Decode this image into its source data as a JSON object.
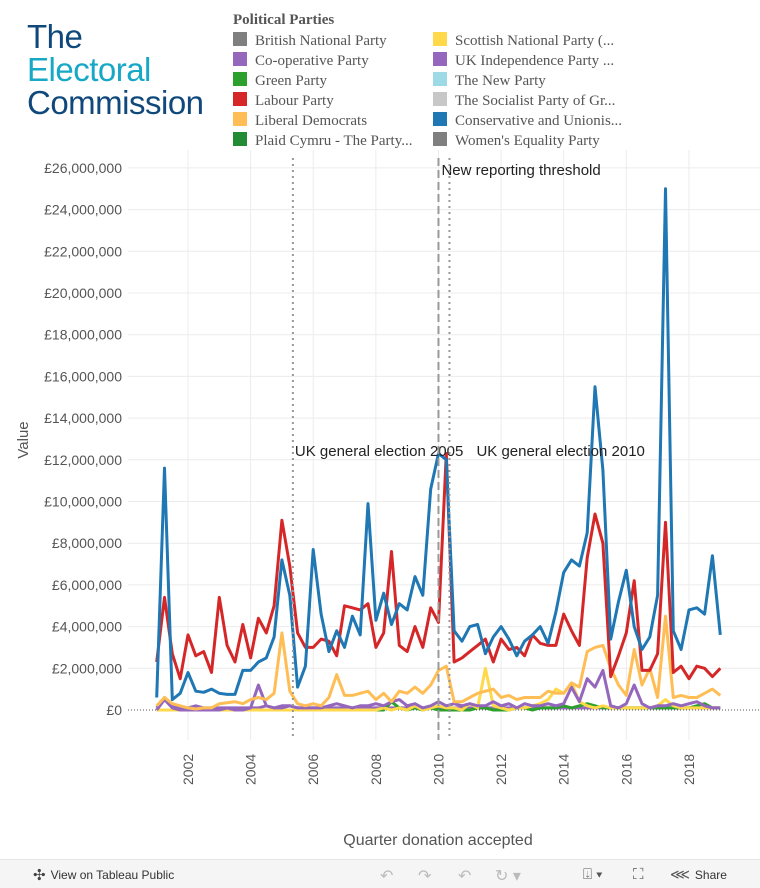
{
  "logo": {
    "line1": "The",
    "line2": "Electoral",
    "line3": "Commission",
    "color1": "#10487b",
    "color2": "#16a8c5"
  },
  "legend": {
    "title": "Political Parties",
    "items": [
      {
        "label": "British National Party",
        "color": "#7f7f7f"
      },
      {
        "label": "Co-operative Party",
        "color": "#9467bd"
      },
      {
        "label": "Green Party",
        "color": "#2ca02c"
      },
      {
        "label": "Labour Party",
        "color": "#d62728"
      },
      {
        "label": "Liberal Democrats",
        "color": "#ffbe55"
      },
      {
        "label": "Plaid Cymru - The Party...",
        "color": "#238b36"
      },
      {
        "label": "Scottish National Party (...",
        "color": "#ffd94a"
      },
      {
        "label": "UK Independence Party ...",
        "color": "#9467bd"
      },
      {
        "label": "The New Party",
        "color": "#9edae5"
      },
      {
        "label": "The Socialist Party of Gr...",
        "color": "#c7c7c7"
      },
      {
        "label": "Conservative and Unionis...",
        "color": "#1f77b4"
      },
      {
        "label": "Women's Equality Party",
        "color": "#7f7f7f"
      }
    ]
  },
  "chart_data": {
    "type": "line",
    "xlabel": "Quarter donation accepted",
    "ylabel": "Value",
    "x_start": "2001 Q1",
    "x_step": "quarter",
    "xlim": [
      2000.9,
      2019.2
    ],
    "ylim": [
      0,
      26000000
    ],
    "xticks": [
      "2002",
      "2004",
      "2006",
      "2008",
      "2010",
      "2012",
      "2014",
      "2016",
      "2018"
    ],
    "yticks": [
      "£0",
      "£2,000,000",
      "£4,000,000",
      "£6,000,000",
      "£8,000,000",
      "£10,000,000",
      "£12,000,000",
      "£14,000,000",
      "£16,000,000",
      "£18,000,000",
      "£20,000,000",
      "£22,000,000",
      "£24,000,000",
      "£26,000,000"
    ],
    "value_unit": "£ millions",
    "grid": true,
    "reference_lines": [
      {
        "label": "UK general election 2005",
        "x": 2005.35,
        "style": "dotted"
      },
      {
        "label": "New reporting threshold",
        "x": 2010.0,
        "style": "dashed"
      },
      {
        "label": "UK general election 2010",
        "x": 2010.35,
        "style": "dotted"
      }
    ],
    "series": [
      {
        "name": "Co-operative Party",
        "color": "#9467bd",
        "values": [
          0.1,
          0.6,
          0.2,
          0.1,
          0.1,
          0.2,
          0.1,
          0.1,
          0.1,
          0.1,
          0.1,
          0.1,
          0.1,
          0.1,
          0.2,
          0.1,
          0.2,
          0.2,
          0.1,
          0.1,
          0.1,
          0.1,
          0.1,
          0.1,
          0.1,
          0.1,
          0.1,
          0.1,
          0.1,
          0.1,
          0.1,
          0.1,
          0.1,
          0.1,
          0.1,
          0.1,
          0.1,
          0.1,
          0.1,
          0.1,
          0.1,
          0.1,
          0.1,
          0.1,
          0.1,
          0.1,
          0.1,
          0.1,
          0.1,
          0.1,
          0.1,
          0.1,
          0.1,
          0.1,
          0.1,
          0.1,
          0.1,
          0.1,
          0.1,
          0.1,
          0.1,
          0.1,
          0.1,
          0.1,
          0.1,
          0.1,
          0.1,
          0.1,
          0.1,
          0.1,
          0.1,
          0.1,
          0.1
        ]
      },
      {
        "name": "Green Party",
        "color": "#2ca02c",
        "values": [
          0,
          0,
          0,
          0,
          0,
          0,
          0,
          0,
          0,
          0,
          0,
          0,
          0,
          0,
          0,
          0,
          0,
          0,
          0,
          0,
          0,
          0,
          0,
          0,
          0,
          0,
          0,
          0,
          0,
          0,
          0.4,
          0.1,
          0,
          0.1,
          0,
          0.1,
          0,
          0,
          0,
          0,
          0,
          0.1,
          0.1,
          0,
          0,
          0,
          0.1,
          0.1,
          0,
          0.1,
          0.1,
          0.1,
          0.2,
          0.1,
          0.2,
          0.3,
          0.2,
          0.1,
          0.1,
          0.1,
          0.1,
          0.1,
          0.1,
          0.1,
          0.1,
          0.1,
          0.1,
          0.1,
          0.1,
          0.2,
          0.3,
          0.1,
          0.1
        ]
      },
      {
        "name": "Scottish National Party (...",
        "color": "#ffd94a",
        "values": [
          0,
          0,
          0,
          0,
          0,
          0,
          0,
          0,
          0,
          0,
          0,
          0,
          0,
          0,
          0,
          0,
          0,
          0,
          0,
          0,
          0,
          0,
          0,
          0,
          0,
          0,
          0,
          0,
          0,
          0.1,
          0,
          0.1,
          0,
          0.2,
          0,
          0.1,
          0.2,
          0.1,
          0.1,
          0,
          0.3,
          0.1,
          2.0,
          0.2,
          0.1,
          0,
          0.1,
          0.1,
          0.2,
          0.3,
          0.5,
          1.0,
          0.8,
          1.3,
          0.4,
          0.2,
          0.1,
          0.2,
          0.1,
          0.1,
          0.1,
          0.1,
          0.1,
          0.1,
          0.2,
          0.5,
          0.2,
          0.1,
          0.1,
          0.1,
          0.1,
          0.1,
          0.1
        ]
      },
      {
        "name": "UK Independence Party ...",
        "color": "#9467bd",
        "values": [
          0,
          0.5,
          0.1,
          0,
          0,
          0,
          0,
          0,
          0,
          0.1,
          0,
          0,
          0.1,
          1.2,
          0.2,
          0.1,
          0.1,
          0.2,
          0.1,
          0.1,
          0.1,
          0.1,
          0.2,
          0.3,
          0.2,
          0.1,
          0.2,
          0.2,
          0.3,
          0.2,
          0.4,
          0.5,
          0.2,
          0.3,
          0.1,
          0.2,
          0.4,
          0.2,
          0.3,
          0.2,
          0.3,
          0.2,
          0.2,
          0.4,
          0.2,
          0.3,
          0.1,
          0.3,
          0.2,
          0.2,
          0.3,
          0.2,
          0.3,
          1.1,
          0.4,
          1.5,
          1.1,
          1.9,
          0.2,
          0.1,
          0.3,
          1.2,
          0.3,
          0.1,
          0.2,
          0.2,
          0.3,
          0.2,
          0.3,
          0.4,
          0.2,
          0.1,
          0.1
        ]
      },
      {
        "name": "Liberal Democrats",
        "color": "#ffbe55",
        "values": [
          0.2,
          0.6,
          0.3,
          0.2,
          0.1,
          0.05,
          0.1,
          0.1,
          0.3,
          0.35,
          0.4,
          0.3,
          0.5,
          0.6,
          0.5,
          0.8,
          3.7,
          0.9,
          0.3,
          0.2,
          0.3,
          0.2,
          0.6,
          1.7,
          0.7,
          0.7,
          0.8,
          0.9,
          0.5,
          0.8,
          0.4,
          0.9,
          0.8,
          1.1,
          0.8,
          1.2,
          1.9,
          2.1,
          0.4,
          0.4,
          0.6,
          0.8,
          0.9,
          1.0,
          0.6,
          0.7,
          0.5,
          0.6,
          0.6,
          0.6,
          0.9,
          0.8,
          0.8,
          1.3,
          1.1,
          2.8,
          3.0,
          3.1,
          2.0,
          1.2,
          0.7,
          2.9,
          1.2,
          2.0,
          0.6,
          4.5,
          0.6,
          0.7,
          0.6,
          0.6,
          0.8,
          1.0,
          0.7
        ]
      },
      {
        "name": "Labour Party",
        "color": "#d62728",
        "values": [
          2.3,
          5.4,
          2.7,
          1.5,
          3.6,
          2.6,
          2.8,
          1.8,
          5.4,
          3.1,
          2.3,
          4.1,
          2.5,
          4.4,
          3.7,
          5.0,
          9.1,
          6.9,
          3.7,
          3.0,
          3.0,
          3.4,
          3.3,
          2.6,
          5.0,
          4.9,
          4.8,
          5.1,
          3.0,
          3.7,
          7.6,
          3.1,
          2.8,
          4.0,
          3.0,
          4.9,
          4.2,
          12.3,
          2.3,
          2.5,
          2.8,
          3.1,
          3.4,
          2.3,
          3.4,
          2.9,
          3.0,
          2.6,
          3.6,
          3.2,
          3.1,
          3.1,
          4.6,
          3.8,
          3.1,
          7.3,
          9.4,
          8.0,
          1.6,
          2.6,
          3.7,
          6.2,
          1.9,
          1.9,
          2.7,
          9.0,
          1.8,
          2.1,
          1.5,
          2.1,
          2.0,
          1.6,
          2.0
        ]
      },
      {
        "name": "Conservative and Unionis...",
        "color": "#1f77b4",
        "values": [
          0.6,
          11.6,
          0.5,
          0.8,
          1.8,
          0.9,
          0.85,
          1.0,
          0.8,
          0.75,
          0.75,
          1.9,
          1.9,
          2.3,
          2.5,
          3.5,
          7.2,
          5.5,
          1.1,
          2.1,
          7.7,
          4.6,
          2.8,
          3.8,
          3.0,
          4.5,
          3.6,
          9.9,
          4.3,
          5.6,
          4.1,
          5.1,
          4.8,
          6.4,
          5.5,
          10.6,
          12.3,
          12.0,
          3.8,
          3.3,
          4.0,
          4.1,
          2.7,
          3.5,
          4.0,
          3.4,
          2.6,
          3.3,
          3.6,
          4.0,
          3.2,
          4.7,
          6.6,
          7.2,
          6.9,
          8.5,
          15.5,
          11.5,
          3.4,
          5.2,
          6.7,
          4.0,
          2.9,
          3.5,
          5.5,
          25.0,
          3.8,
          2.9,
          4.8,
          4.9,
          4.6,
          7.4,
          3.6
        ]
      }
    ]
  },
  "toolbar": {
    "view_label": "View on Tableau Public",
    "share_label": "Share"
  }
}
